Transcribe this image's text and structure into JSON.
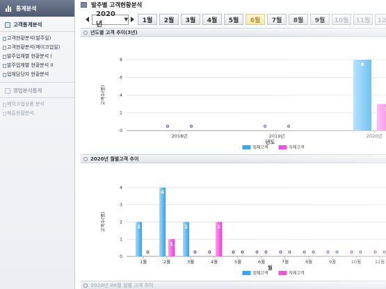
{
  "sidebar": {
    "header": "통계분석",
    "section1": "고객통계분석",
    "items1": [
      "고객현황분석(발주일)",
      "고객현황분석(메이크업일)",
      "발주업체별 현황분석 I",
      "발주업체별 현황분석 II",
      "업체담당자 현황분석"
    ],
    "section2": "영업분석통계",
    "items2": [
      "메이크업상품 분석",
      "매출현황분석"
    ]
  },
  "page": {
    "title": "발주별 고객현황분석",
    "year": "2020 년",
    "months": [
      "1월",
      "2월",
      "3월",
      "4월",
      "5월",
      "6월",
      "7월",
      "8월",
      "9월",
      "10월",
      "11월",
      "12월"
    ],
    "active_month": "6월"
  },
  "panel1": {
    "title": "년도별 고객 추이(3년)"
  },
  "panel2": {
    "title": "2020년 월별고객 추이"
  },
  "panel3": {
    "title": "2020년 06월 일별 고객 추이"
  },
  "chart_data": [
    {
      "type": "bar",
      "categories": [
        "2018년",
        "2019년",
        "2020년"
      ],
      "series": [
        {
          "name": "업체고객",
          "values": [
            0,
            0,
            8
          ],
          "color": "#2aa7ee"
        },
        {
          "name": "자체고객",
          "values": [
            0,
            0,
            3
          ],
          "color": "#f23bd6"
        }
      ],
      "xlabel": "년도",
      "ylabel": "고객수(명)",
      "yticks": [
        "0",
        "2",
        "4",
        "6",
        "8"
      ],
      "ylim": [
        0,
        8
      ],
      "grid": true,
      "legend": "bottom"
    },
    {
      "type": "bar",
      "categories": [
        "1월",
        "2월",
        "3월",
        "4월",
        "5월",
        "6월",
        "7월",
        "8월",
        "9월",
        "10월",
        "11월"
      ],
      "series": [
        {
          "name": "업체고객",
          "values": [
            2,
            4,
            2,
            0,
            0,
            0,
            0,
            0,
            0,
            0,
            0
          ],
          "color": "#2aa7ee"
        },
        {
          "name": "자체고객",
          "values": [
            0,
            1,
            0,
            2,
            0,
            0,
            0,
            0,
            0,
            0,
            0
          ],
          "color": "#f23bd6"
        }
      ],
      "xlabel": "월",
      "ylabel": "고객수(명)",
      "yticks": [
        "0",
        "1",
        "2",
        "3",
        "4"
      ],
      "ylim": [
        0,
        4
      ],
      "grid": true,
      "legend": "bottom"
    }
  ]
}
